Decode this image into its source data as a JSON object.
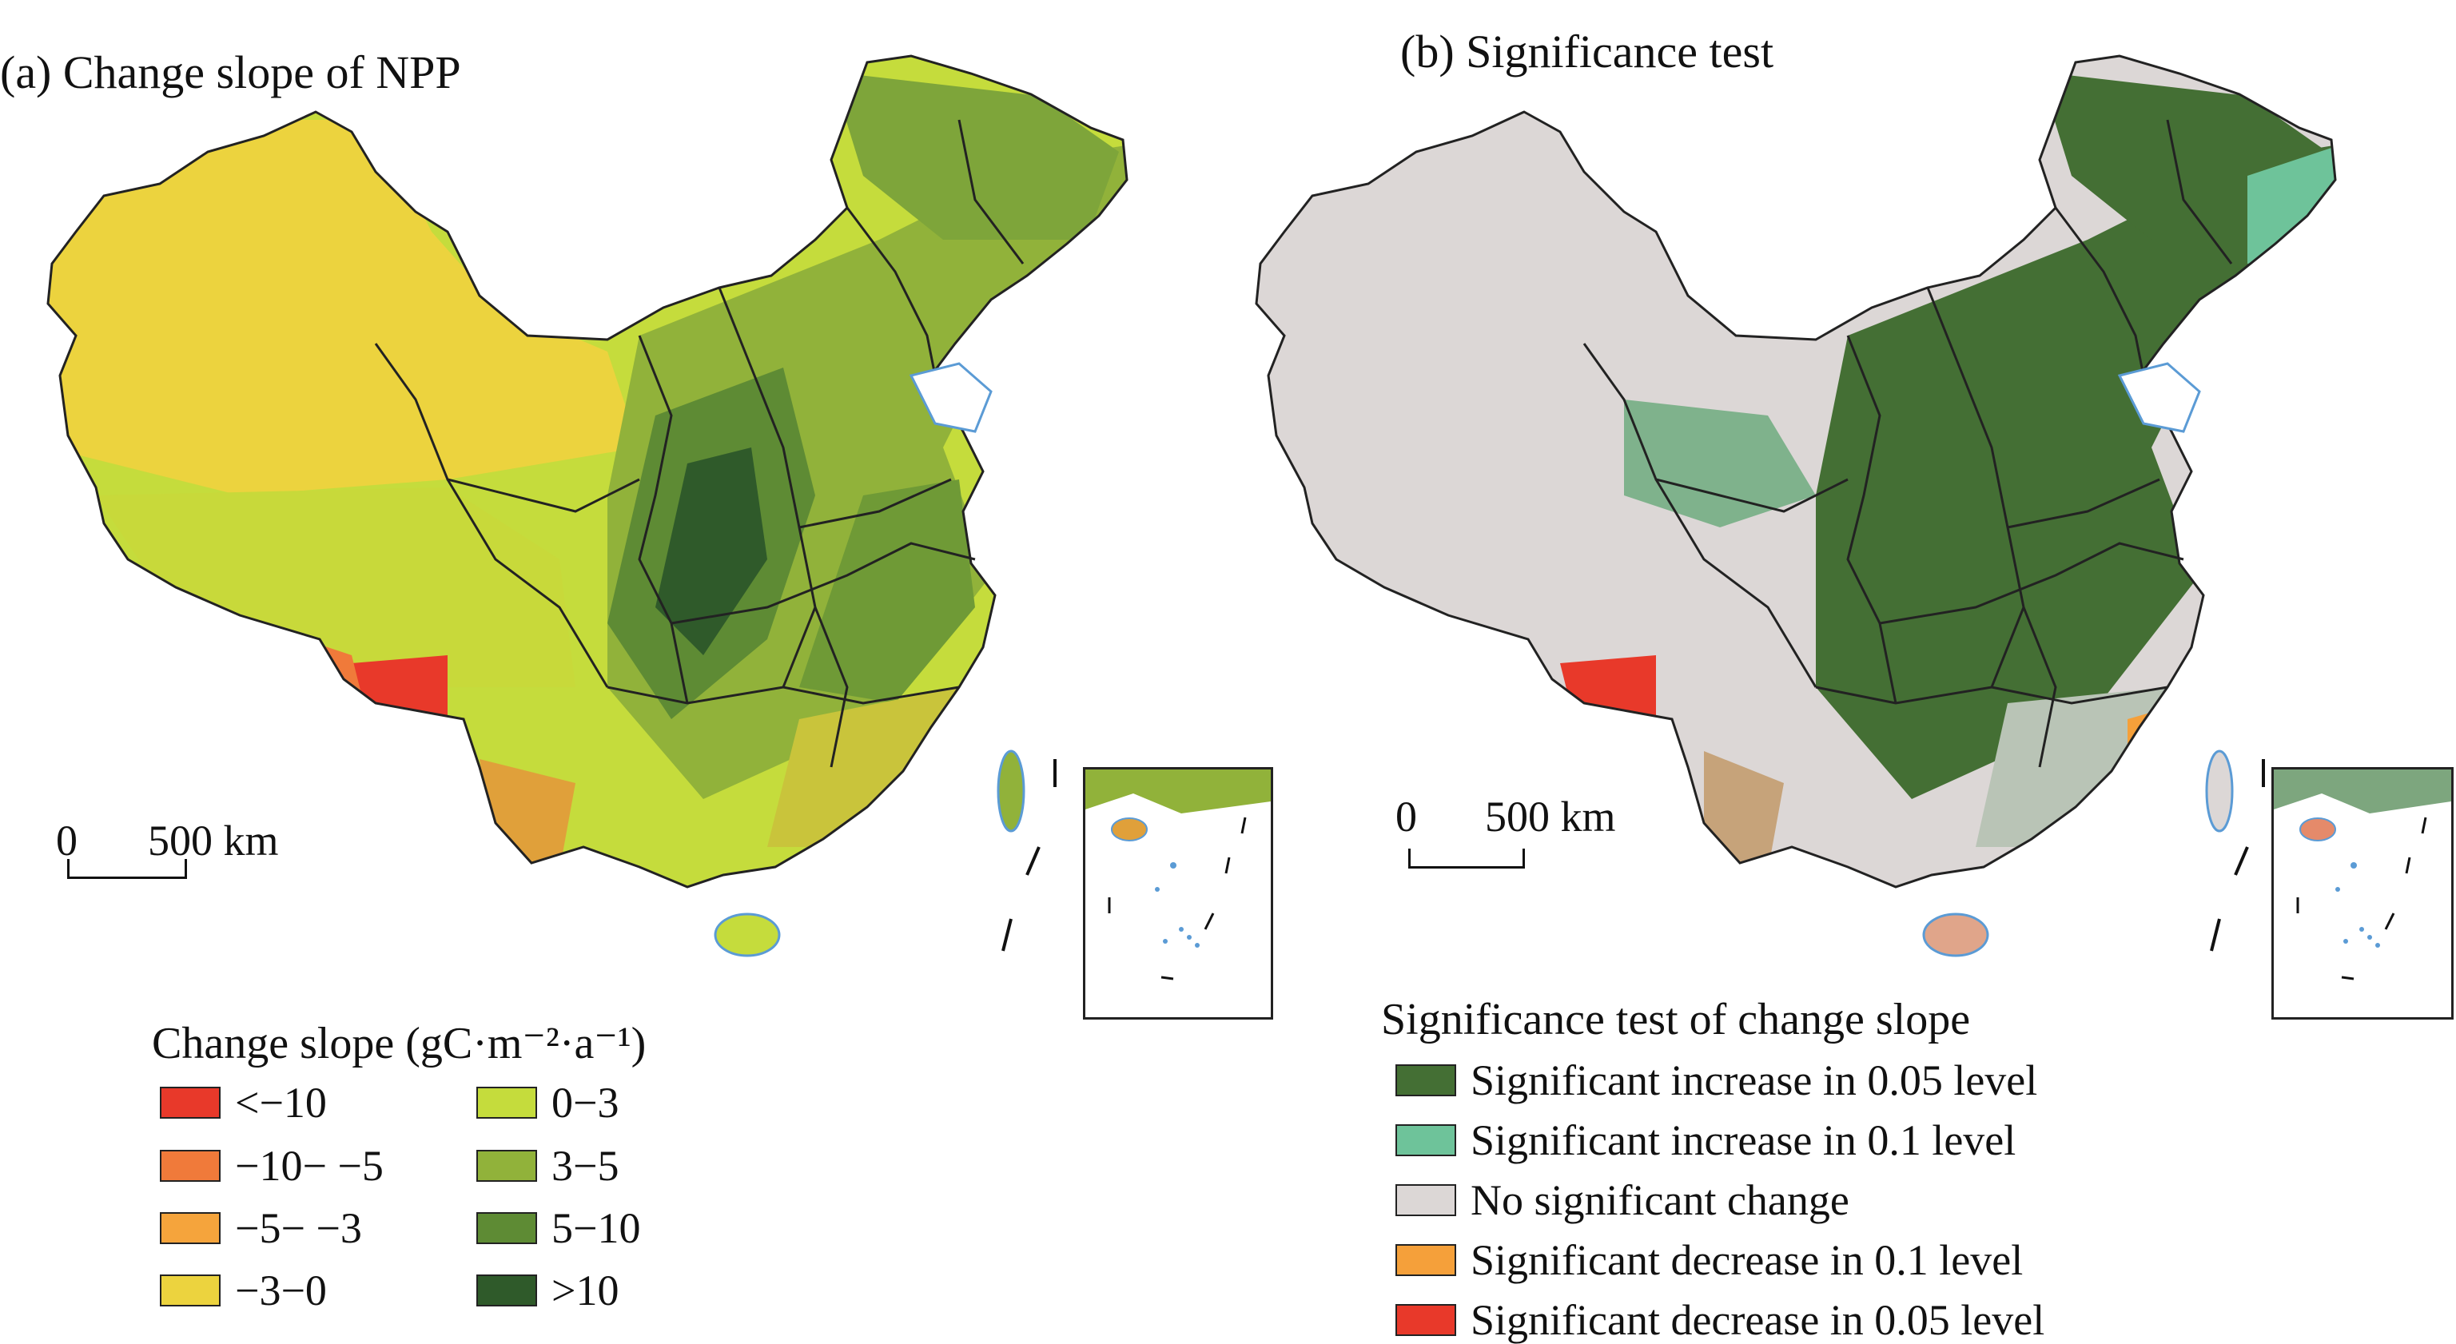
{
  "panel_a": {
    "title": "(a) Change slope of NPP",
    "scale": {
      "zero": "0",
      "distance": "500 km"
    },
    "legend": {
      "title": "Change slope (gC·m⁻²·a⁻¹)",
      "items": [
        {
          "label": "<−10",
          "color": "#e8392a"
        },
        {
          "label": "−10− −5",
          "color": "#f07a3a"
        },
        {
          "label": "−5− −3",
          "color": "#f5a43c"
        },
        {
          "label": "−3−0",
          "color": "#ecd33e"
        },
        {
          "label": "0−3",
          "color": "#c5dc3c"
        },
        {
          "label": "3−5",
          "color": "#91b23a"
        },
        {
          "label": "5−10",
          "color": "#5e8b34"
        },
        {
          "label": ">10",
          "color": "#2f5a2a"
        }
      ]
    }
  },
  "panel_b": {
    "title": "(b) Significance test",
    "scale": {
      "zero": "0",
      "distance": "500 km"
    },
    "legend": {
      "title": "Significance test of change slope",
      "items": [
        {
          "label": "Significant increase in 0.05 level",
          "color": "#446f34"
        },
        {
          "label": "Significant increase in 0.1 level",
          "color": "#6ec39a"
        },
        {
          "label": "No significant change",
          "color": "#dcd7d6"
        },
        {
          "label": "Significant decrease in 0.1 level",
          "color": "#f5a03a"
        },
        {
          "label": "Significant decrease in 0.05 level",
          "color": "#e8392a"
        }
      ]
    }
  }
}
